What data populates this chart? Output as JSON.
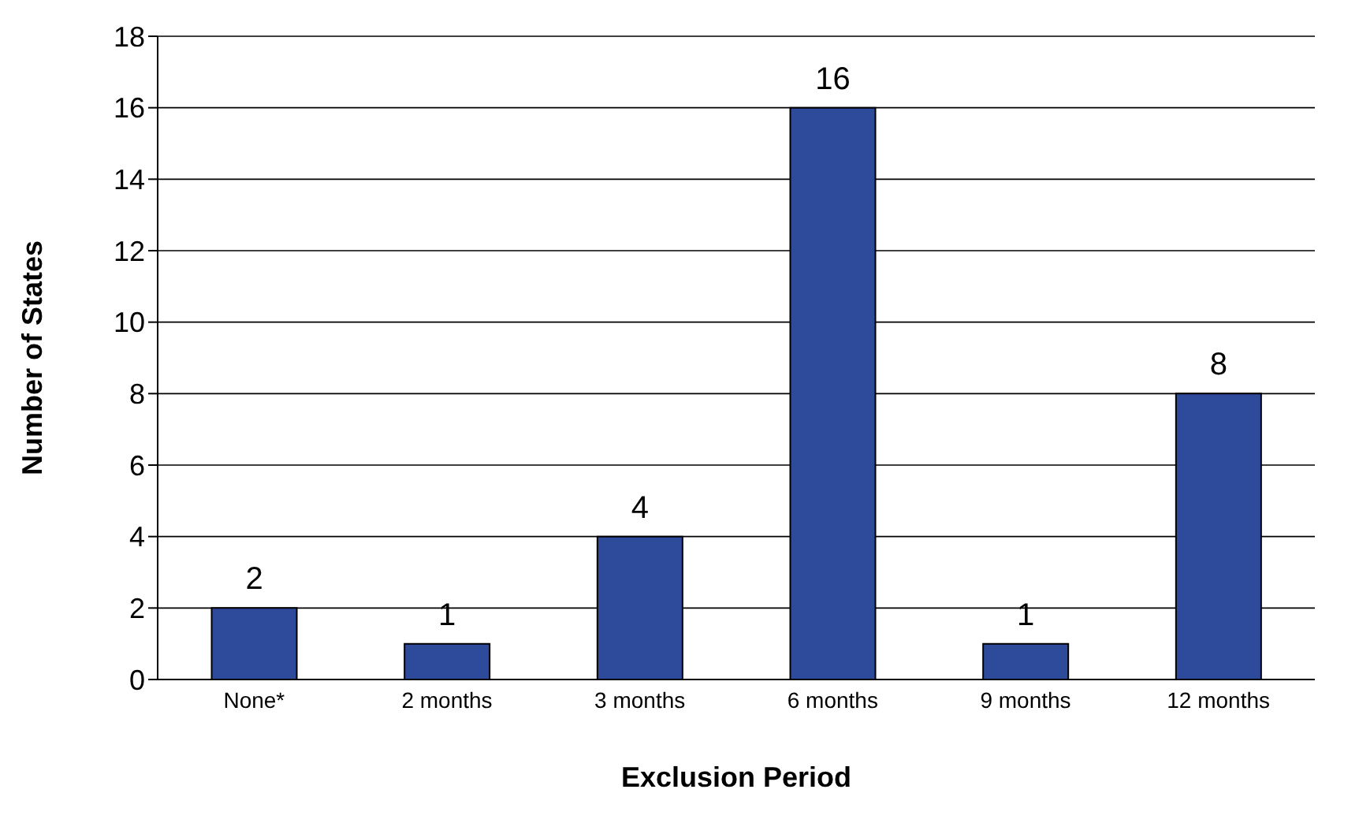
{
  "chart_data": {
    "type": "bar",
    "xlabel": "Exclusion Period",
    "ylabel": "Number of States",
    "categories": [
      "None*",
      "2 months",
      "3 months",
      "6 months",
      "9 months",
      "12 months"
    ],
    "values": [
      2,
      1,
      4,
      16,
      1,
      8
    ],
    "color": "#2e4a9a",
    "ylim": [
      0,
      18
    ],
    "yticks": [
      0,
      2,
      4,
      6,
      8,
      10,
      12,
      14,
      16,
      18
    ],
    "grid": "y",
    "data_labels": true
  }
}
